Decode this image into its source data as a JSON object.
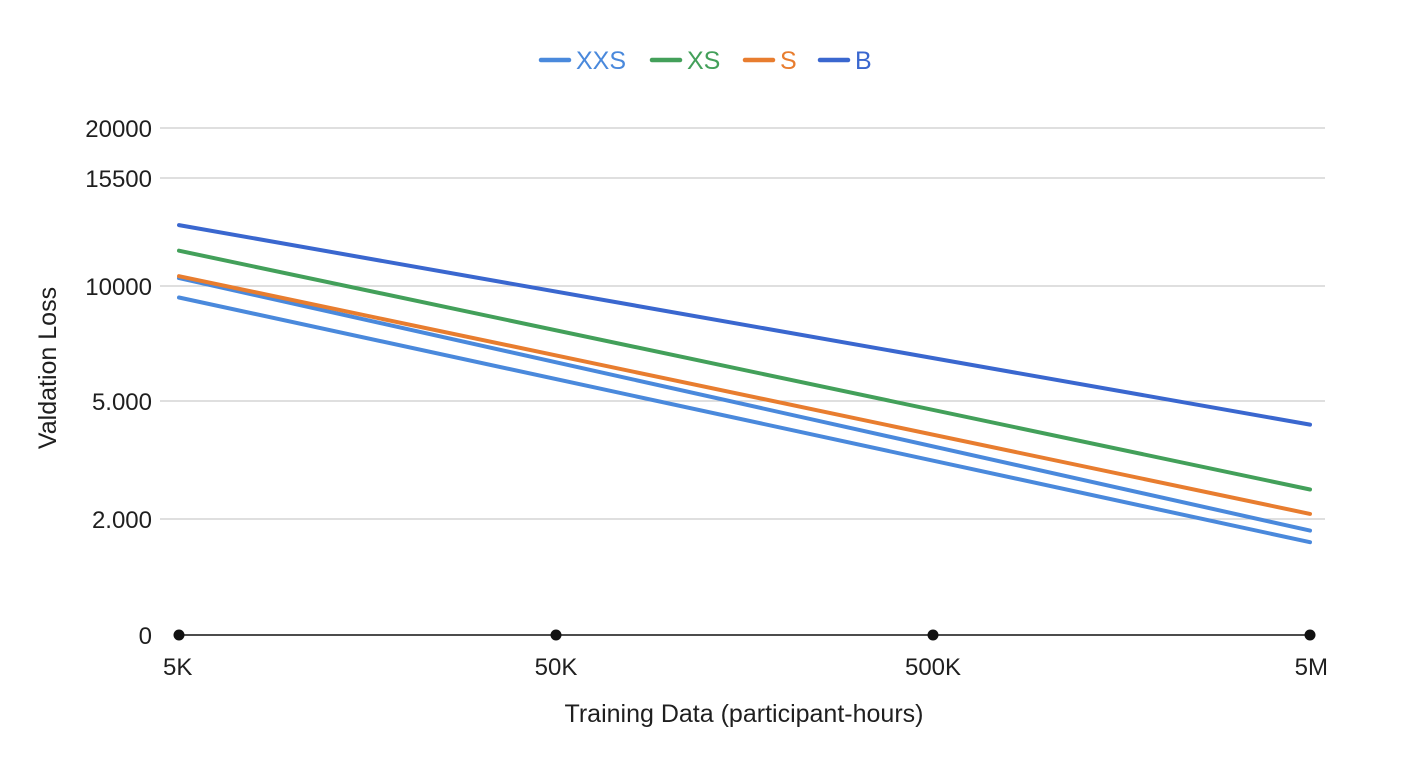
{
  "chart_data": {
    "type": "line",
    "xlabel": "Training Data (participant-hours)",
    "ylabel": "Valdation Loss",
    "x": [
      "5K",
      "5M"
    ],
    "x_ticks": [
      "5K",
      "50K",
      "500K",
      "5M"
    ],
    "y_ticks": [
      {
        "value": 0,
        "label": "0"
      },
      {
        "value": 2000,
        "label": "2.000"
      },
      {
        "value": 5000,
        "label": "5.000"
      },
      {
        "value": 10000,
        "label": "10000"
      },
      {
        "value": 15500,
        "label": "15500"
      },
      {
        "value": 20000,
        "label": "20000"
      }
    ],
    "grid": true,
    "legend_position": "top-center",
    "series": [
      {
        "name": "XXS",
        "color": "#4a89dc",
        "values": [
          9500,
          1600
        ]
      },
      {
        "name": "XXS",
        "color": "#4a89dc",
        "values": [
          10400,
          1800
        ]
      },
      {
        "name": "XS",
        "color": "#43a05a",
        "values": [
          11800,
          2750
        ]
      },
      {
        "name": "S",
        "color": "#e87d2f",
        "values": [
          10500,
          2130
        ]
      },
      {
        "name": "B",
        "color": "#3a67cf",
        "values": [
          13100,
          4400
        ]
      }
    ],
    "legend": [
      {
        "name": "XXS",
        "color": "#4a89dc"
      },
      {
        "name": "XS",
        "color": "#43a05a"
      },
      {
        "name": "S",
        "color": "#e87d2f"
      },
      {
        "name": "B",
        "color": "#3a67cf"
      }
    ]
  }
}
